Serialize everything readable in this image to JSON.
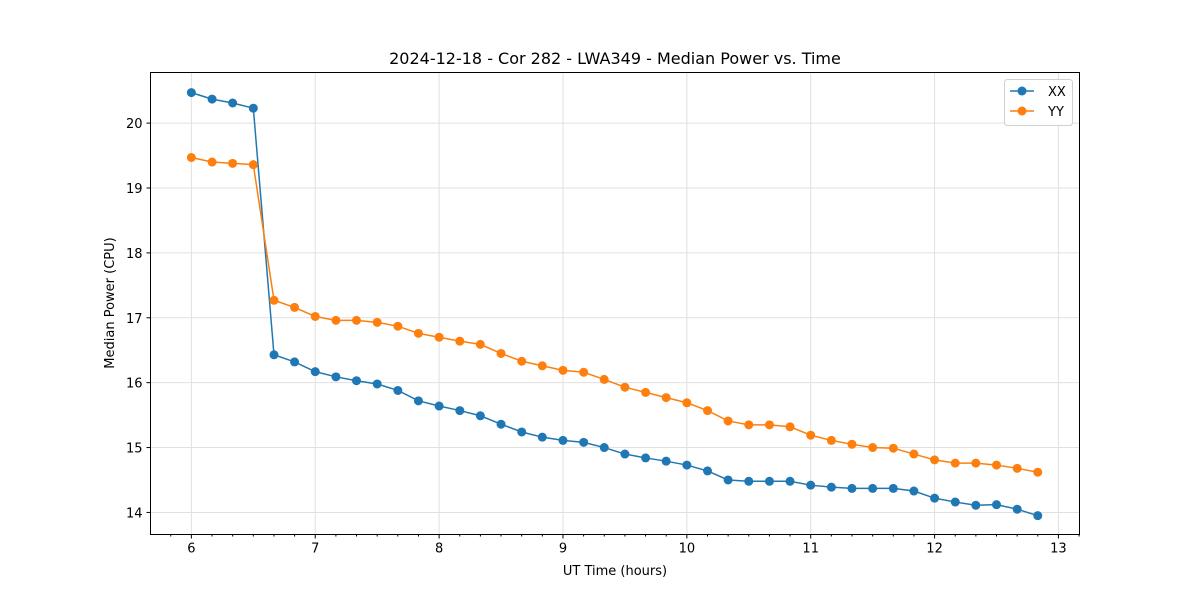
{
  "chart_data": {
    "type": "line",
    "title": "2024-12-18 - Cor 282 - LWA349 - Median Power vs. Time",
    "xlabel": "UT Time (hours)",
    "ylabel": "Median Power (CPU)",
    "xlim": [
      5.67,
      13.17
    ],
    "ylim": [
      13.66,
      20.78
    ],
    "xticks": [
      6,
      7,
      8,
      9,
      10,
      11,
      12,
      13
    ],
    "yticks": [
      14,
      15,
      16,
      17,
      18,
      19,
      20
    ],
    "grid": true,
    "legend_position": "top-right",
    "x": [
      6.0,
      6.167,
      6.333,
      6.5,
      6.667,
      6.833,
      7.0,
      7.167,
      7.333,
      7.5,
      7.667,
      7.833,
      8.0,
      8.167,
      8.333,
      8.5,
      8.667,
      8.833,
      9.0,
      9.167,
      9.333,
      9.5,
      9.667,
      9.833,
      10.0,
      10.167,
      10.333,
      10.5,
      10.667,
      10.833,
      11.0,
      11.167,
      11.333,
      11.5,
      11.667,
      11.833,
      12.0,
      12.167,
      12.333,
      12.5,
      12.667,
      12.833
    ],
    "series": [
      {
        "name": "XX",
        "color": "#1f77b4",
        "values": [
          20.47,
          20.37,
          20.31,
          20.23,
          16.43,
          16.32,
          16.17,
          16.09,
          16.03,
          15.98,
          15.88,
          15.72,
          15.64,
          15.57,
          15.49,
          15.36,
          15.24,
          15.16,
          15.11,
          15.08,
          15.0,
          14.9,
          14.84,
          14.79,
          14.73,
          14.64,
          14.5,
          14.48,
          14.48,
          14.48,
          14.42,
          14.39,
          14.37,
          14.37,
          14.37,
          14.33,
          14.22,
          14.16,
          14.11,
          14.12,
          14.05,
          13.95
        ]
      },
      {
        "name": "YY",
        "color": "#ff7f0e",
        "values": [
          19.47,
          19.4,
          19.38,
          19.36,
          17.27,
          17.16,
          17.02,
          16.96,
          16.96,
          16.93,
          16.87,
          16.76,
          16.7,
          16.64,
          16.59,
          16.45,
          16.33,
          16.26,
          16.19,
          16.16,
          16.05,
          15.93,
          15.85,
          15.77,
          15.69,
          15.57,
          15.41,
          15.35,
          15.35,
          15.32,
          15.19,
          15.11,
          15.05,
          15.0,
          14.99,
          14.9,
          14.81,
          14.76,
          14.76,
          14.73,
          14.68,
          14.62
        ]
      }
    ]
  }
}
